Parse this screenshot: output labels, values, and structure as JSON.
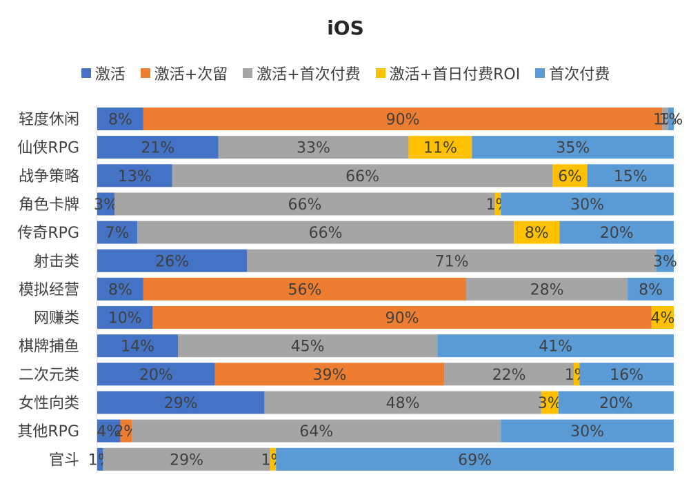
{
  "chart_data": {
    "type": "bar",
    "orientation": "horizontal",
    "stacked": "percent",
    "title": "iOS",
    "legend_position": "top",
    "grid": false,
    "xlim": [
      0,
      100
    ],
    "categories": [
      "轻度休闲",
      "仙侠RPG",
      "战争策略",
      "角色卡牌",
      "传奇RPG",
      "射击类",
      "模拟经营",
      "网赚类",
      "棋牌捕鱼",
      "二次元类",
      "女性向类",
      "其他RPG",
      "官斗"
    ],
    "series": [
      {
        "name": "激活",
        "color": "#4472C4",
        "values": [
          8,
          21,
          13,
          3,
          7,
          26,
          8,
          10,
          14,
          20,
          29,
          4,
          1
        ]
      },
      {
        "name": "激活+次留",
        "color": "#ED7D31",
        "values": [
          90,
          0,
          0,
          0,
          0,
          0,
          56,
          90,
          0,
          39,
          0,
          2,
          0
        ]
      },
      {
        "name": "激活+首次付费",
        "color": "#A5A5A5",
        "values": [
          1,
          33,
          66,
          66,
          66,
          71,
          28,
          0,
          45,
          22,
          48,
          64,
          29
        ]
      },
      {
        "name": "激活+首日付费ROI",
        "color": "#FFC000",
        "values": [
          0,
          11,
          6,
          1,
          8,
          0,
          0,
          4,
          0,
          1,
          3,
          0,
          1
        ]
      },
      {
        "name": "首次付费",
        "color": "#5B9BD5",
        "values": [
          1,
          35,
          15,
          30,
          20,
          3,
          8,
          0,
          41,
          16,
          20,
          30,
          69
        ]
      }
    ],
    "label_color": "#404040"
  }
}
